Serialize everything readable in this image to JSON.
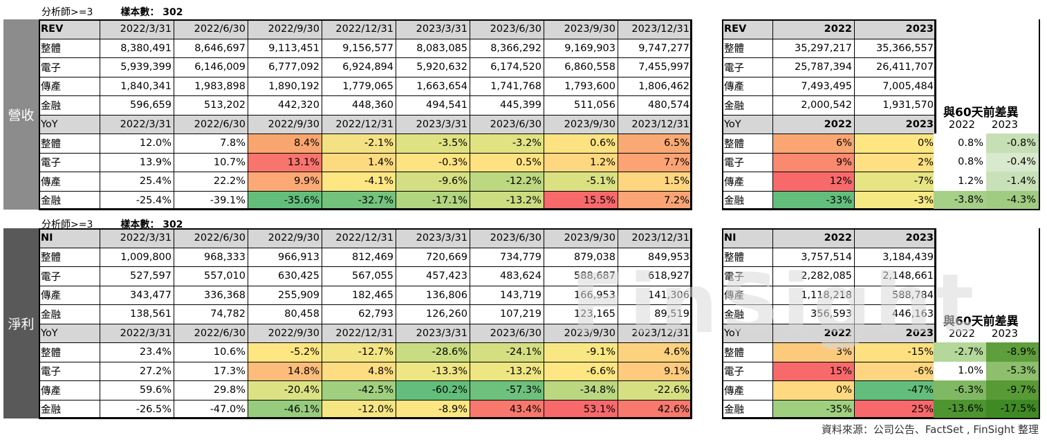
{
  "colors": {
    "sidebar_top": "#8c8c8c",
    "sidebar_bottom": "#595959",
    "header_fill": "#d6d6d6"
  },
  "source": "資料來源：公司公告、FactSet , FinSight 整理",
  "watermark": "FinSight",
  "sections": [
    {
      "side_label": "營收",
      "analysts": "分析師>=3",
      "sample_label": "樣本數：",
      "sample_value": "302",
      "header_label": "REV",
      "yoy_label": "YoY",
      "periods": [
        "2022/3/31",
        "2022/6/30",
        "2022/9/30",
        "2022/12/31",
        "2023/3/31",
        "2023/6/30",
        "2023/9/30",
        "2023/12/31"
      ],
      "rows": [
        {
          "label": "整體",
          "values": [
            "8,380,491",
            "8,646,697",
            "9,113,451",
            "9,156,577",
            "8,083,085",
            "8,366,292",
            "9,169,903",
            "9,747,277"
          ]
        },
        {
          "label": "電子",
          "values": [
            "5,939,399",
            "6,146,009",
            "6,777,092",
            "6,924,894",
            "5,920,632",
            "6,174,520",
            "6,860,558",
            "7,455,997"
          ]
        },
        {
          "label": "傳產",
          "values": [
            "1,840,341",
            "1,983,898",
            "1,890,192",
            "1,779,065",
            "1,663,654",
            "1,741,768",
            "1,793,600",
            "1,806,462"
          ]
        },
        {
          "label": "金融",
          "values": [
            "596,659",
            "513,202",
            "442,320",
            "448,360",
            "494,541",
            "445,399",
            "511,056",
            "480,574"
          ]
        }
      ],
      "yoy_rows": [
        {
          "label": "整體",
          "values": [
            "12.0%",
            "7.8%",
            "8.4%",
            "-2.1%",
            "-3.5%",
            "-3.2%",
            "0.6%",
            "6.5%"
          ],
          "colors": [
            "#ffffff",
            "#ffffff",
            "#f8a56f",
            "#f3e184",
            "#dfe283",
            "#e1e383",
            "#fde282",
            "#f9a973"
          ]
        },
        {
          "label": "電子",
          "values": [
            "13.9%",
            "10.7%",
            "13.1%",
            "1.4%",
            "-0.3%",
            "0.5%",
            "1.2%",
            "7.7%"
          ],
          "colors": [
            "#ffffff",
            "#ffffff",
            "#f8746d",
            "#fdda80",
            "#fee382",
            "#fee282",
            "#fed880",
            "#fba374"
          ]
        },
        {
          "label": "傳產",
          "values": [
            "25.4%",
            "22.2%",
            "9.9%",
            "-4.1%",
            "-9.6%",
            "-12.2%",
            "-5.1%",
            "1.5%"
          ],
          "colors": [
            "#ffffff",
            "#ffffff",
            "#fca976",
            "#fee683",
            "#d3df82",
            "#bcd880",
            "#dbe183",
            "#fed680"
          ]
        },
        {
          "label": "金融",
          "values": [
            "-25.4%",
            "-39.1%",
            "-35.6%",
            "-32.7%",
            "-17.1%",
            "-13.2%",
            "15.5%",
            "7.2%"
          ],
          "colors": [
            "#ffffff",
            "#ffffff",
            "#63be7b",
            "#74c37c",
            "#b2d580",
            "#cbdc81",
            "#f8696b",
            "#fba475"
          ]
        }
      ],
      "annual": {
        "years": [
          "2022",
          "2023"
        ],
        "rows": [
          {
            "label": "整體",
            "values": [
              "35,297,217",
              "35,366,557"
            ]
          },
          {
            "label": "電子",
            "values": [
              "25,787,394",
              "26,411,707"
            ]
          },
          {
            "label": "傳產",
            "values": [
              "7,493,495",
              "7,005,484"
            ]
          },
          {
            "label": "金融",
            "values": [
              "2,000,542",
              "1,931,570"
            ]
          }
        ],
        "yoy_rows": [
          {
            "label": "整體",
            "values": [
              "6%",
              "0%"
            ],
            "colors": [
              "#f9a673",
              "#fee683"
            ]
          },
          {
            "label": "電子",
            "values": [
              "9%",
              "2%"
            ],
            "colors": [
              "#f9896f",
              "#fee082"
            ]
          },
          {
            "label": "傳產",
            "values": [
              "12%",
              "-7%"
            ],
            "colors": [
              "#f8696b",
              "#e6e483"
            ]
          },
          {
            "label": "金融",
            "values": [
              "-33%",
              "-3%"
            ],
            "colors": [
              "#63be7b",
              "#f6e883"
            ]
          }
        ]
      },
      "diff": {
        "title": "與60天前差異",
        "years": [
          "2022",
          "2023"
        ],
        "rows": [
          {
            "values": [
              "0.8%",
              "-0.8%"
            ],
            "colors": [
              "#ffffff",
              "#c6dfb5"
            ]
          },
          {
            "values": [
              "0.8%",
              "-0.4%"
            ],
            "colors": [
              "#ffffff",
              "#d9e9cd"
            ]
          },
          {
            "values": [
              "1.2%",
              "-1.4%"
            ],
            "colors": [
              "#ffffff",
              "#c9e1b9"
            ]
          },
          {
            "values": [
              "-3.8%",
              "-4.3%"
            ],
            "colors": [
              "#a6cf88",
              "#a0cc82"
            ]
          }
        ]
      }
    },
    {
      "side_label": "淨利",
      "analysts": "分析師>=3",
      "sample_label": "樣本數：",
      "sample_value": "302",
      "header_label": "NI",
      "yoy_label": "YoY",
      "periods": [
        "2022/3/31",
        "2022/6/30",
        "2022/9/30",
        "2022/12/31",
        "2023/3/31",
        "2023/6/30",
        "2023/9/30",
        "2023/12/31"
      ],
      "rows": [
        {
          "label": "整體",
          "values": [
            "1,009,800",
            "968,333",
            "966,913",
            "812,469",
            "720,669",
            "734,779",
            "879,038",
            "849,953"
          ]
        },
        {
          "label": "電子",
          "values": [
            "527,597",
            "557,010",
            "630,425",
            "567,055",
            "457,423",
            "483,624",
            "588,687",
            "618,927"
          ]
        },
        {
          "label": "傳產",
          "values": [
            "343,477",
            "336,368",
            "255,909",
            "182,465",
            "136,806",
            "143,719",
            "166,953",
            "141,306"
          ]
        },
        {
          "label": "金融",
          "values": [
            "138,561",
            "74,782",
            "80,458",
            "62,793",
            "126,260",
            "107,219",
            "123,165",
            "89,519"
          ]
        }
      ],
      "yoy_rows": [
        {
          "label": "整體",
          "values": [
            "23.4%",
            "10.6%",
            "-5.2%",
            "-12.7%",
            "-28.6%",
            "-24.1%",
            "-9.1%",
            "4.6%"
          ],
          "colors": [
            "#ffffff",
            "#ffffff",
            "#fee683",
            "#f3e584",
            "#c9dc81",
            "#d5df82",
            "#f9e784",
            "#fdd27f"
          ]
        },
        {
          "label": "電子",
          "values": [
            "27.2%",
            "17.3%",
            "14.8%",
            "4.8%",
            "-13.3%",
            "-13.2%",
            "-6.6%",
            "9.1%"
          ],
          "colors": [
            "#ffffff",
            "#ffffff",
            "#fcbc7b",
            "#fedc81",
            "#eee583",
            "#eee583",
            "#fde683",
            "#fdca7e"
          ]
        },
        {
          "label": "傳產",
          "values": [
            "59.6%",
            "29.8%",
            "-20.4%",
            "-42.5%",
            "-60.2%",
            "-57.3%",
            "-34.8%",
            "-22.6%"
          ],
          "colors": [
            "#ffffff",
            "#ffffff",
            "#dce283",
            "#a0cf7f",
            "#63be7b",
            "#6ec17c",
            "#bbd881",
            "#d6e082"
          ]
        },
        {
          "label": "金融",
          "values": [
            "-26.5%",
            "-47.0%",
            "-46.1%",
            "-12.0%",
            "-8.9%",
            "43.4%",
            "53.1%",
            "42.6%"
          ],
          "colors": [
            "#ffffff",
            "#ffffff",
            "#97cc7e",
            "#f5e583",
            "#fbe683",
            "#f8786d",
            "#f8696b",
            "#f8796e"
          ]
        }
      ],
      "annual": {
        "years": [
          "2022",
          "2023"
        ],
        "rows": [
          {
            "label": "整體",
            "values": [
              "3,757,514",
              "3,184,439"
            ]
          },
          {
            "label": "電子",
            "values": [
              "2,282,085",
              "2,148,661"
            ]
          },
          {
            "label": "傳產",
            "values": [
              "1,118,218",
              "588,784"
            ]
          },
          {
            "label": "金融",
            "values": [
              "356,593",
              "446,163"
            ]
          }
        ],
        "yoy_rows": [
          {
            "label": "整體",
            "values": [
              "3%",
              "-15%"
            ],
            "colors": [
              "#fcca7d",
              "#fee081"
            ]
          },
          {
            "label": "電子",
            "values": [
              "15%",
              "-6%"
            ],
            "colors": [
              "#f8696b",
              "#fed580"
            ]
          },
          {
            "label": "傳產",
            "values": [
              "0%",
              "-47%"
            ],
            "colors": [
              "#fed980",
              "#63be7b"
            ]
          },
          {
            "label": "金融",
            "values": [
              "-35%",
              "25%"
            ],
            "colors": [
              "#9fd07f",
              "#f8696b"
            ]
          }
        ]
      },
      "diff": {
        "title": "與60天前差異",
        "years": [
          "2022",
          "2023"
        ],
        "rows": [
          {
            "values": [
              "-2.7%",
              "-8.9%"
            ],
            "colors": [
              "#b4d79a",
              "#5f9e3c"
            ]
          },
          {
            "values": [
              "1.0%",
              "-5.3%"
            ],
            "colors": [
              "#ffffff",
              "#8dbf6d"
            ]
          },
          {
            "values": [
              "-6.3%",
              "-9.7%"
            ],
            "colors": [
              "#81b863",
              "#589a35"
            ]
          },
          {
            "values": [
              "-13.6%",
              "-17.5%"
            ],
            "colors": [
              "#4e9430",
              "#3f8a24"
            ]
          }
        ]
      }
    }
  ]
}
